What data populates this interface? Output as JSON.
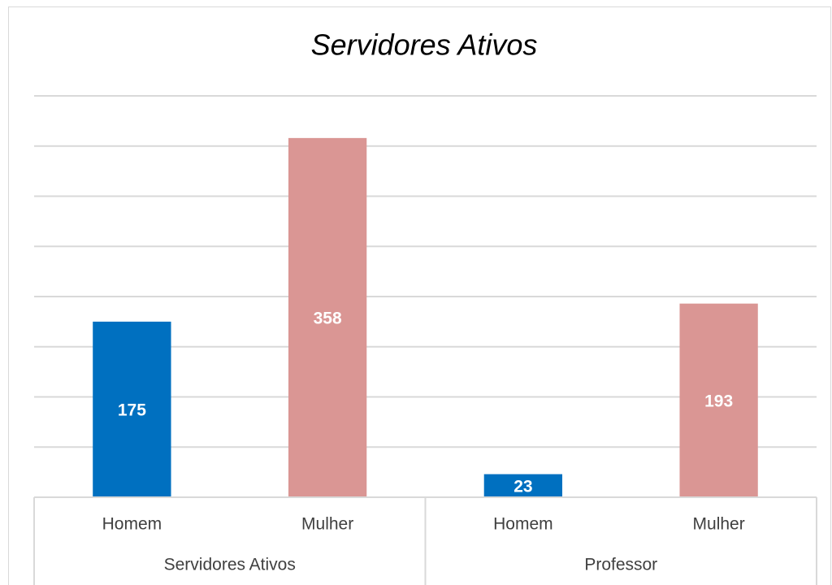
{
  "chart_data": {
    "type": "bar",
    "title": "Servidores Ativos",
    "groups": [
      {
        "name": "Servidores Ativos",
        "categories": [
          "Homem",
          "Mulher"
        ],
        "values": [
          175,
          358
        ]
      },
      {
        "name": "Professor",
        "categories": [
          "Homem",
          "Mulher"
        ],
        "values": [
          23,
          193
        ]
      }
    ],
    "colors": [
      "#0070c0",
      "#da9694"
    ],
    "ylim": [
      0,
      400
    ],
    "yticks": [
      0,
      50,
      100,
      150,
      200,
      250,
      300,
      350,
      400
    ],
    "grid": true
  }
}
